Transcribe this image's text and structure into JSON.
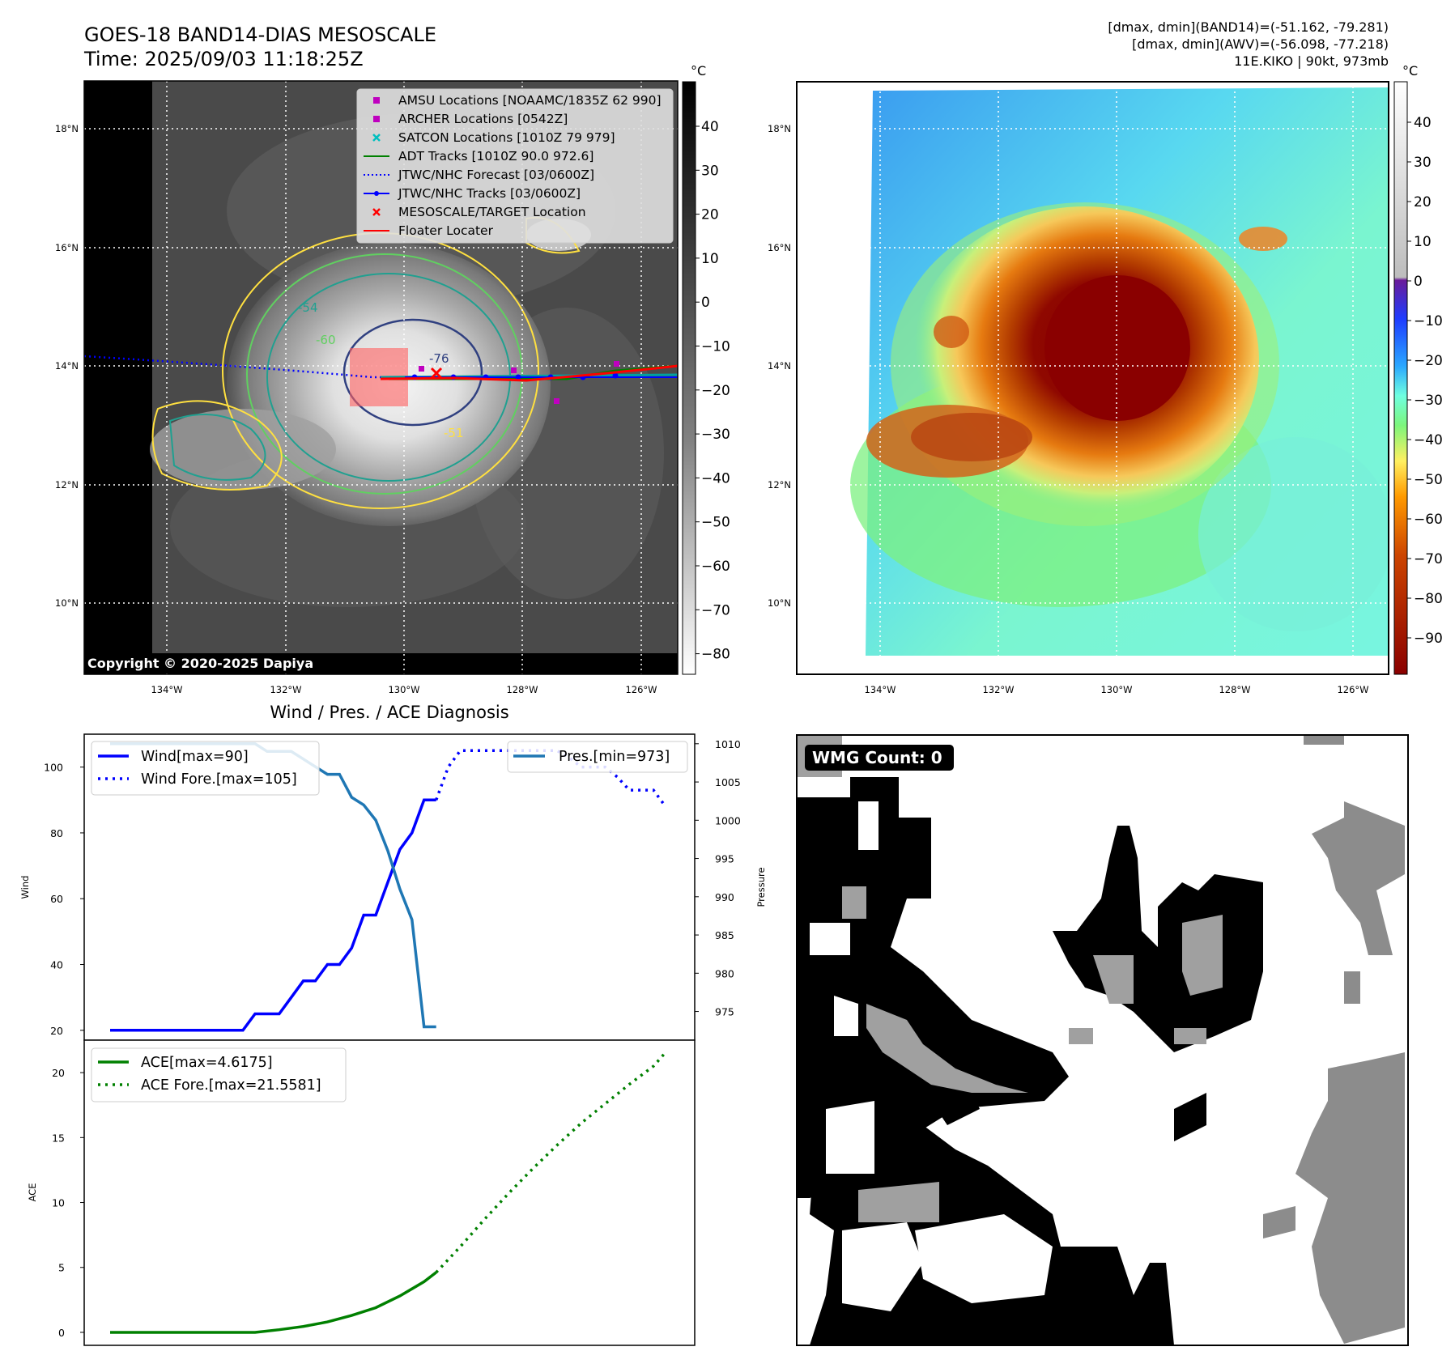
{
  "header": {
    "title_line1": "GOES-18 BAND14-DIAS MESOSCALE",
    "title_line2": "Time: 2025/09/03 11:18:25Z",
    "info_line1": "[dmax, dmin](BAND14)=(-51.162, -79.281)",
    "info_line2": "[dmax, dmin](AWV)=(-56.098, -77.218)",
    "info_line3": "11E.KIKO | 90kt, 973mb"
  },
  "map": {
    "lat_labels": [
      "18°N",
      "16°N",
      "14°N",
      "12°N",
      "10°N"
    ],
    "lon_labels": [
      "134°W",
      "132°W",
      "130°W",
      "128°W",
      "126°W"
    ],
    "copyright": "Copyright © 2020-2025 Dapiya",
    "contour_labels": [
      "-54",
      "-60",
      "-76",
      "-51"
    ],
    "legend": [
      {
        "label": "AMSU Locations [NOAAMC/1835Z 62 990]",
        "color": "#bf00bf",
        "marker": "square"
      },
      {
        "label": "ARCHER Locations [0542Z]",
        "color": "#bf00bf",
        "marker": "square"
      },
      {
        "label": "SATCON Locations [1010Z 79 979]",
        "color": "#00bfbf",
        "marker": "x"
      },
      {
        "label": "ADT Tracks [1010Z 90.0 972.6]",
        "color": "#008000",
        "marker": "line"
      },
      {
        "label": "JTWC/NHC Forecast [03/0600Z]",
        "color": "#0000ff",
        "marker": "dotted"
      },
      {
        "label": "JTWC/NHC Tracks [03/0600Z]",
        "color": "#0000ff",
        "marker": "line-dot"
      },
      {
        "label": "MESOSCALE/TARGET Location",
        "color": "#ff0000",
        "marker": "x"
      },
      {
        "label": "Floater Locater",
        "color": "#ff0000",
        "marker": "line"
      }
    ]
  },
  "colorbar_gray": {
    "unit": "°C",
    "ticks": [
      "40",
      "30",
      "20",
      "10",
      "0",
      "−10",
      "−20",
      "−30",
      "−40",
      "−50",
      "−60",
      "−70",
      "−80"
    ]
  },
  "colorbar_color": {
    "unit": "°C",
    "ticks": [
      "40",
      "30",
      "20",
      "10",
      "0",
      "−10",
      "−20",
      "−30",
      "−40",
      "−50",
      "−60",
      "−70",
      "−80",
      "−90"
    ]
  },
  "wmg": {
    "label": "WMG Count: 0"
  },
  "chart_data": [
    {
      "type": "line",
      "title": "Wind / Pres. / ACE Diagnosis",
      "ylabel": "Wind",
      "y2label": "Pressure",
      "ylim": [
        17,
        110
      ],
      "y2lim": [
        971.25,
        1011.25
      ],
      "yticks": [
        20,
        40,
        60,
        80,
        100
      ],
      "y2ticks": [
        975,
        980,
        985,
        990,
        995,
        1000,
        1005,
        1010
      ],
      "x_index_max": 46,
      "series": [
        {
          "name": "Wind[max=90]",
          "style": "solid",
          "color": "#0000ff",
          "x": [
            0,
            1,
            2,
            3,
            4,
            5,
            6,
            7,
            8,
            9,
            10,
            11,
            12,
            13,
            14,
            15,
            16,
            17,
            18,
            19,
            20,
            21,
            22,
            23,
            24,
            25,
            26,
            27
          ],
          "values": [
            20,
            20,
            20,
            20,
            20,
            20,
            20,
            20,
            20,
            20,
            20,
            20,
            25,
            25,
            25,
            30,
            35,
            35,
            40,
            40,
            45,
            55,
            55,
            65,
            75,
            80,
            90,
            90
          ]
        },
        {
          "name": "Wind Fore.[max=105]",
          "style": "dotted",
          "color": "#0000ff",
          "x": [
            27,
            28,
            29,
            30,
            31,
            32,
            33,
            34,
            35,
            36,
            37,
            38,
            39,
            40,
            41,
            42,
            43,
            44,
            45,
            46
          ],
          "values": [
            90,
            100,
            105,
            105,
            105,
            105,
            105,
            105,
            105,
            105,
            105,
            103,
            100,
            100,
            100,
            97,
            93,
            93,
            93,
            88
          ]
        },
        {
          "name": "Pres.[min=973]",
          "style": "solid",
          "color": "#1f77b4",
          "axis": "right",
          "x": [
            0,
            1,
            2,
            3,
            4,
            5,
            6,
            7,
            8,
            9,
            10,
            11,
            12,
            13,
            14,
            15,
            16,
            17,
            18,
            19,
            20,
            21,
            22,
            23,
            24,
            25,
            26,
            27
          ],
          "values": [
            1010,
            1010,
            1010,
            1010,
            1010,
            1010,
            1010,
            1010,
            1010,
            1010,
            1010,
            1010,
            1010,
            1009,
            1009,
            1009,
            1008,
            1007,
            1006,
            1006,
            1003,
            1002,
            1000,
            996,
            991,
            987,
            973,
            973
          ]
        }
      ]
    },
    {
      "type": "line",
      "ylabel": "ACE",
      "ylim": [
        -1,
        22.5
      ],
      "yticks": [
        0,
        5,
        10,
        15,
        20
      ],
      "series": [
        {
          "name": "ACE[max=4.6175]",
          "style": "solid",
          "color": "#008000",
          "x": [
            0,
            4,
            8,
            12,
            14,
            16,
            18,
            20,
            22,
            24,
            26,
            27
          ],
          "values": [
            0,
            0,
            0,
            0,
            0.2,
            0.45,
            0.8,
            1.3,
            1.9,
            2.8,
            3.9,
            4.6175
          ]
        },
        {
          "name": "ACE Fore.[max=21.5581]",
          "style": "dotted",
          "color": "#008000",
          "x": [
            27,
            29,
            31,
            33,
            35,
            37,
            39,
            41,
            43,
            45,
            46
          ],
          "values": [
            4.6175,
            6.6,
            8.7,
            10.7,
            12.6,
            14.4,
            16.1,
            17.6,
            19.1,
            20.5,
            21.5581
          ]
        }
      ]
    }
  ]
}
